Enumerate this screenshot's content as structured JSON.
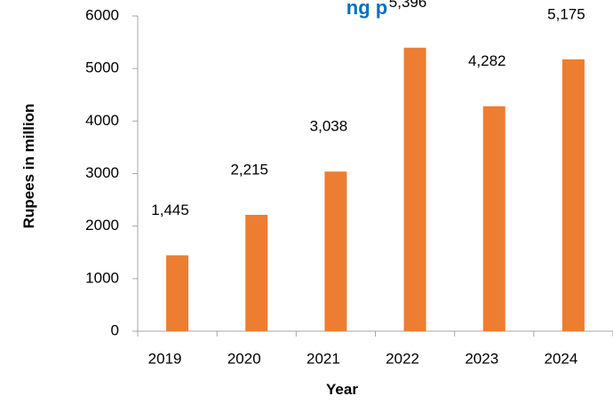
{
  "chart_data": {
    "type": "bar",
    "title": "ng p",
    "xlabel": "Year",
    "ylabel": "Rupees in million",
    "categories": [
      "2019",
      "2020",
      "2021",
      "2022",
      "2023",
      "2024"
    ],
    "values": [
      1445,
      2215,
      3038,
      5396,
      4282,
      5175
    ],
    "data_labels": [
      "1,445",
      "2,215",
      "3,038",
      "5,396",
      "4,282",
      "5,175"
    ],
    "ylim": [
      0,
      6000
    ],
    "yticks": [
      0,
      1000,
      2000,
      3000,
      4000,
      5000,
      6000
    ],
    "grid": false,
    "legend": "none",
    "colors": {
      "bar": "#ED7D31",
      "axis": "#A6A6A6",
      "title": "#0070C0"
    }
  }
}
